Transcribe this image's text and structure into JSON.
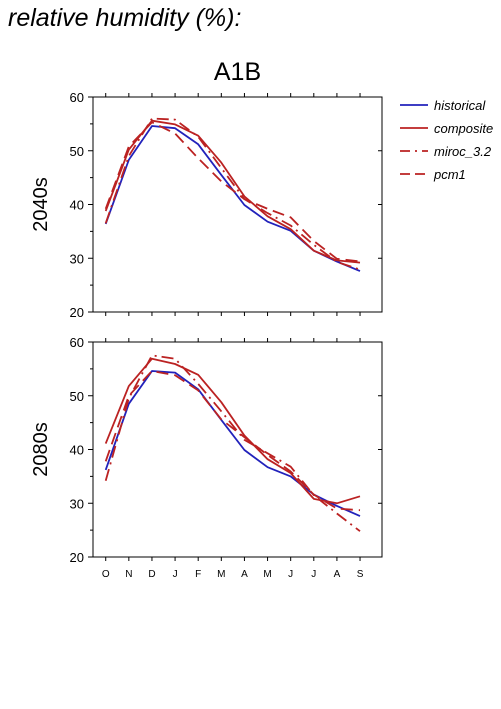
{
  "page_title": "relative humidity (%):",
  "colors": {
    "historical": "#2222bb",
    "model": "#bb2222",
    "axis": "#000000"
  },
  "chart_data": {
    "type": "line",
    "title": "A1B",
    "categories": [
      "O",
      "N",
      "D",
      "J",
      "F",
      "M",
      "A",
      "M",
      "J",
      "J",
      "A",
      "S"
    ],
    "ylim": [
      20,
      60
    ],
    "yticks": [
      20,
      30,
      40,
      50,
      60
    ],
    "grid": false,
    "legend_position": "right",
    "legend": [
      {
        "name": "historical",
        "color": "#2222bb",
        "dash": "solid"
      },
      {
        "name": "composite",
        "color": "#bb2222",
        "dash": "solid"
      },
      {
        "name": "miroc_3.2",
        "color": "#bb2222",
        "dash": "dashdot"
      },
      {
        "name": "pcm1",
        "color": "#bb2222",
        "dash": "dashed"
      }
    ],
    "panels": [
      {
        "ylabel": "2040s",
        "series": [
          {
            "name": "historical",
            "values": [
              36.4,
              48.3,
              54.6,
              54.2,
              51.2,
              45.5,
              39.9,
              36.8,
              35.1,
              31.4,
              29.4,
              27.6
            ]
          },
          {
            "name": "composite",
            "values": [
              38.8,
              50.2,
              55.6,
              54.9,
              52.8,
              47.8,
              41.5,
              37.8,
              35.4,
              31.4,
              29.6,
              29.2
            ]
          },
          {
            "name": "miroc_3.2",
            "values": [
              36.5,
              49.0,
              56.0,
              55.8,
              52.6,
              46.8,
              41.0,
              38.4,
              36.1,
              32.5,
              29.3,
              27.9
            ]
          },
          {
            "name": "pcm1",
            "values": [
              39.2,
              50.8,
              55.3,
              53.2,
              48.6,
              44.3,
              41.0,
              39.2,
              37.6,
              33.2,
              29.9,
              29.4
            ]
          }
        ]
      },
      {
        "ylabel": "2080s",
        "series": [
          {
            "name": "historical",
            "values": [
              36.2,
              48.5,
              54.6,
              54.3,
              51.2,
              45.5,
              39.9,
              36.7,
              35.0,
              31.6,
              29.5,
              27.6
            ]
          },
          {
            "name": "composite",
            "values": [
              41.1,
              51.8,
              56.9,
              55.9,
              53.9,
              48.8,
              42.6,
              38.2,
              35.6,
              30.8,
              30.0,
              31.3
            ]
          },
          {
            "name": "miroc_3.2",
            "values": [
              34.2,
              49.5,
              57.5,
              56.9,
              52.2,
              47.1,
              41.8,
              39.3,
              36.8,
              31.5,
              28.1,
              24.8
            ]
          },
          {
            "name": "pcm1",
            "values": [
              37.8,
              50.0,
              54.6,
              53.8,
              51.0,
              45.6,
              42.3,
              39.0,
              35.9,
              31.6,
              29.0,
              28.7
            ]
          }
        ]
      }
    ]
  }
}
